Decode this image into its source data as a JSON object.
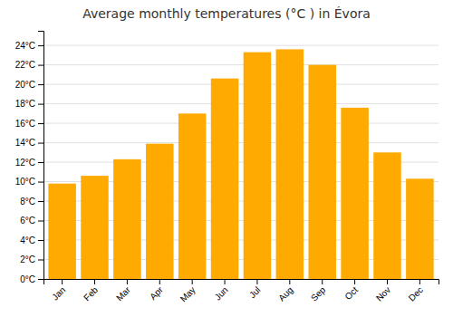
{
  "chart_data": {
    "type": "bar",
    "title": "Average monthly temperatures (°C ) in Évora",
    "categories": [
      "Jan",
      "Feb",
      "Mar",
      "Apr",
      "May",
      "Jun",
      "Jul",
      "Aug",
      "Sep",
      "Oct",
      "Nov",
      "Dec"
    ],
    "values": [
      9.8,
      10.6,
      12.3,
      13.9,
      17.0,
      20.6,
      23.3,
      23.6,
      22.0,
      17.6,
      13.0,
      10.3
    ],
    "color": "#FFAA00",
    "ylim": [
      0,
      25.5
    ],
    "yticks": [
      {
        "value": 0,
        "label": "0°C"
      },
      {
        "value": 2,
        "label": "2°C"
      },
      {
        "value": 4,
        "label": "4°C"
      },
      {
        "value": 6,
        "label": "6°C"
      },
      {
        "value": 8,
        "label": "8°C"
      },
      {
        "value": 10,
        "label": "10°C"
      },
      {
        "value": 12,
        "label": "12°C"
      },
      {
        "value": 14,
        "label": "14°C"
      },
      {
        "value": 16,
        "label": "16°C"
      },
      {
        "value": 18,
        "label": "18°C"
      },
      {
        "value": 20,
        "label": "20°C"
      },
      {
        "value": 22,
        "label": "22°C"
      },
      {
        "value": 24,
        "label": "24°C"
      }
    ],
    "grid": true
  }
}
